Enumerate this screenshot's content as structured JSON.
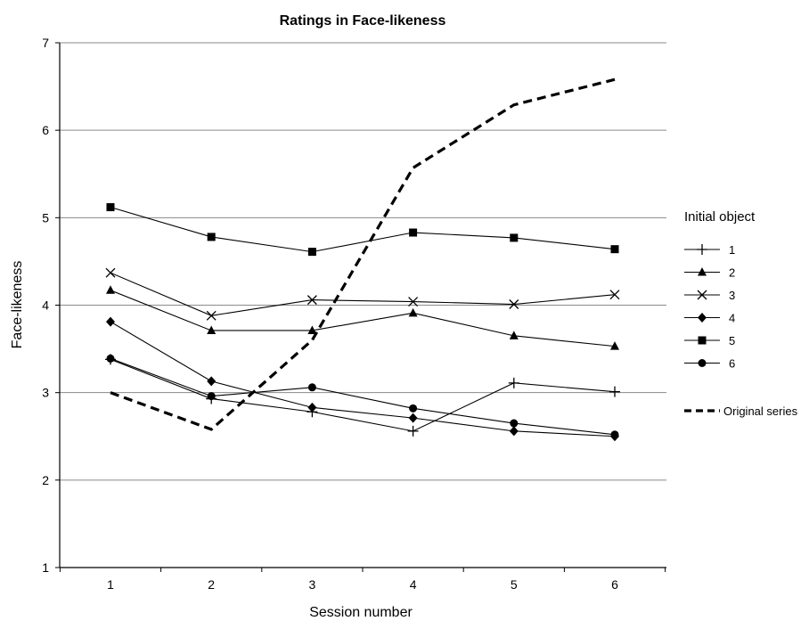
{
  "chart_data": {
    "type": "line",
    "title": "Ratings in Face-likeness",
    "xlabel": "Session number",
    "ylabel": "Face-likeness",
    "x": [
      1,
      2,
      3,
      4,
      5,
      6
    ],
    "x_tick_labels": [
      "1",
      "2",
      "3",
      "4",
      "5",
      "6"
    ],
    "ylim": [
      1,
      7
    ],
    "y_ticks": [
      1,
      2,
      3,
      4,
      5,
      6,
      7
    ],
    "grid": "horizontal",
    "legend_position": "right",
    "legend_title": "Initial object",
    "series": [
      {
        "name": "1",
        "marker": "plus",
        "style": "solid",
        "values": [
          3.38,
          2.93,
          2.78,
          2.56,
          3.11,
          3.01
        ]
      },
      {
        "name": "2",
        "marker": "triangle",
        "style": "solid",
        "values": [
          4.17,
          3.71,
          3.71,
          3.91,
          3.65,
          3.53
        ]
      },
      {
        "name": "3",
        "marker": "x",
        "style": "solid",
        "values": [
          4.37,
          3.88,
          4.06,
          4.04,
          4.01,
          4.12
        ]
      },
      {
        "name": "4",
        "marker": "diamond",
        "style": "solid",
        "values": [
          3.81,
          3.13,
          2.83,
          2.71,
          2.56,
          2.5
        ]
      },
      {
        "name": "5",
        "marker": "square",
        "style": "solid",
        "values": [
          5.12,
          4.78,
          4.61,
          4.83,
          4.77,
          4.64
        ]
      },
      {
        "name": "6",
        "marker": "circle",
        "style": "solid",
        "values": [
          3.39,
          2.96,
          3.06,
          2.82,
          2.65,
          2.52
        ]
      },
      {
        "name": "Original series",
        "marker": "none",
        "style": "dashed",
        "values": [
          3.0,
          2.58,
          3.6,
          5.57,
          6.29,
          6.58
        ]
      }
    ]
  }
}
